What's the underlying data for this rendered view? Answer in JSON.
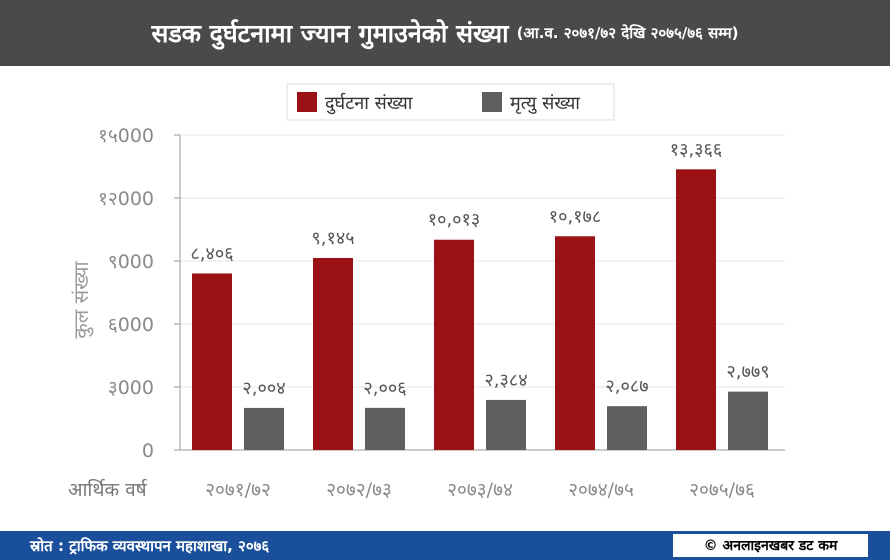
{
  "header": {
    "title": "सडक दुर्घटनामा ज्यान गुमाउनेको संख्या",
    "subtitle": "(आ.व. २०७१/७२ देखि २०७५/७६ सम्म)"
  },
  "footer": {
    "source": "स्रोत : ट्राफिक व्यवस्थापन महाशाखा, २०७६",
    "credit": "© अनलाइनखबर डट कम"
  },
  "chart_data": {
    "type": "bar",
    "categories": [
      "२०७१/७२",
      "२०७२/७३",
      "२०७३/७४",
      "२०७४/७५",
      "२०७५/७६"
    ],
    "series": [
      {
        "name": "दुर्घटना संख्या",
        "color": "#9b1114",
        "values": [
          8406,
          9145,
          10013,
          10178,
          13366
        ],
        "labels": [
          "८,४०६",
          "९,१४५",
          "१०,०१३",
          "१०,१७८",
          "१३,३६६"
        ]
      },
      {
        "name": "मृत्यु संख्या",
        "color": "#5f5f5f",
        "values": [
          2004,
          2006,
          2384,
          2087,
          2779
        ],
        "labels": [
          "२,००४",
          "२,००६",
          "२,३८४",
          "२,०८७",
          "२,७७९"
        ]
      }
    ],
    "ylabel": "कुल संख्या",
    "xlabel": "आर्थिक वर्ष",
    "ylim": [
      0,
      15000
    ],
    "yticks": [
      0,
      3000,
      6000,
      9000,
      12000,
      15000
    ],
    "ytick_labels": [
      "0",
      "३000",
      "६000",
      "९000",
      "१२000",
      "१५000"
    ],
    "grid": true,
    "legend_position": "top-center"
  }
}
